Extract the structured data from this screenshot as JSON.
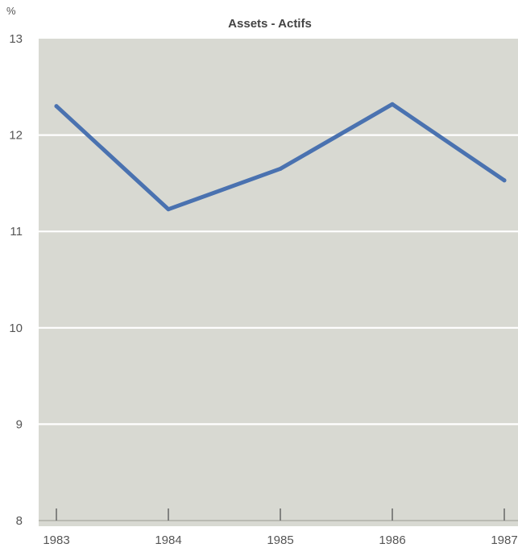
{
  "chart_data": {
    "type": "line",
    "title": "Assets - Actifs",
    "y_unit": "%",
    "x": [
      "1983",
      "1984",
      "1985",
      "1986",
      "1987"
    ],
    "series": [
      {
        "values": [
          12.3,
          11.23,
          11.65,
          12.32,
          11.53
        ]
      }
    ],
    "ylim": [
      8,
      13
    ],
    "yticks": [
      "8",
      "9",
      "10",
      "11",
      "12",
      "13"
    ],
    "grid": true,
    "colors": {
      "line": "#4a72b0",
      "plot_bg": "#d8d9d2",
      "grid": "#ffffff"
    }
  }
}
